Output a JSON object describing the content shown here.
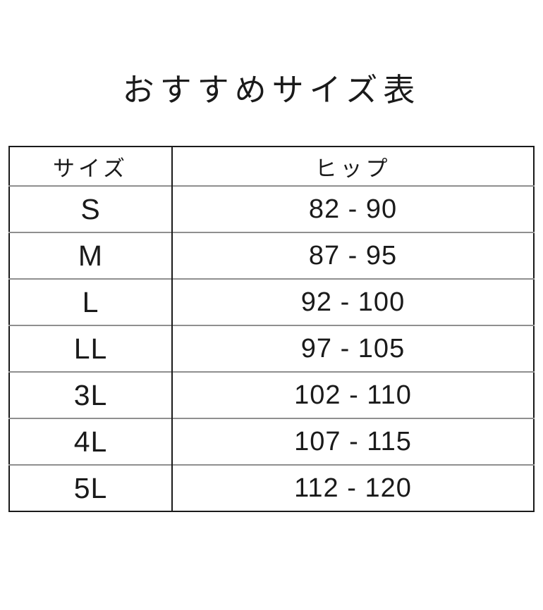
{
  "page": {
    "background_color": "#ffffff",
    "text_color": "#1a1a1a"
  },
  "title": "おすすめサイズ表",
  "chart_data": {
    "type": "table",
    "title": "おすすめサイズ表",
    "columns": [
      "サイズ",
      "ヒップ"
    ],
    "rows": [
      {
        "size": "S",
        "hip": "82 - 90"
      },
      {
        "size": "M",
        "hip": "87 - 95"
      },
      {
        "size": "L",
        "hip": "92 - 100"
      },
      {
        "size": "LL",
        "hip": "97 - 105"
      },
      {
        "size": "3L",
        "hip": "102 - 110"
      },
      {
        "size": "4L",
        "hip": "107 - 115"
      },
      {
        "size": "5L",
        "hip": "112 - 120"
      }
    ]
  },
  "colors": {
    "outer_border": "#1a1a1a",
    "column_divider": "#1a1a1a",
    "row_divider": "#8f8f8f",
    "background": "#ffffff",
    "text": "#1a1a1a"
  }
}
